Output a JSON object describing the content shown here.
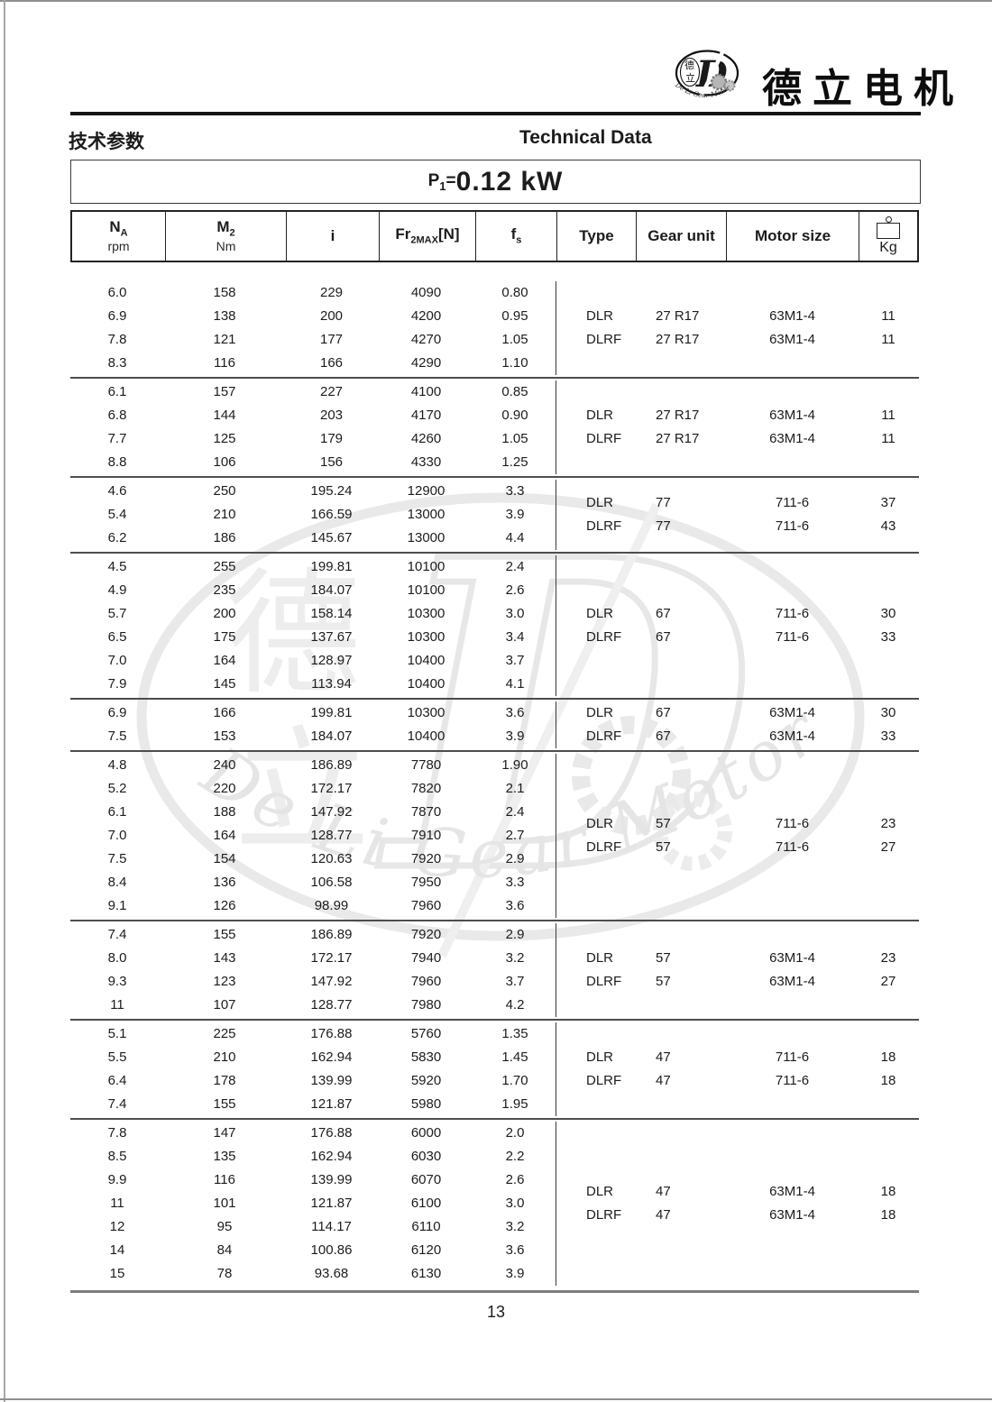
{
  "brand": {
    "logo_cn_top": "德",
    "logo_cn_bottom": "立",
    "logo_letter": "D",
    "logo_arc_text": "De Li Gear Motor",
    "company_cn": "德立电机"
  },
  "header": {
    "left_cn": "技术参数",
    "right_en": "Technical Data"
  },
  "power_title": {
    "p": "P",
    "p_sub": "1",
    "equals": "=",
    "value": "0.12 kW"
  },
  "table": {
    "columns": {
      "na": {
        "main": "N",
        "sub": "A",
        "unit": "rpm"
      },
      "m2": {
        "main": "M",
        "sub": "2",
        "unit": "Nm"
      },
      "i": {
        "label": "i"
      },
      "fr": {
        "main": "Fr",
        "sub": "2MAX",
        "bracket": "[N]"
      },
      "fs": {
        "main": "f",
        "sub": "s"
      },
      "type": {
        "label": "Type"
      },
      "gear": {
        "label": "Gear unit"
      },
      "motor": {
        "label": "Motor size"
      },
      "kg": {
        "label": "Kg"
      }
    },
    "groups": [
      {
        "rows": [
          [
            "6.0",
            "158",
            "229",
            "4090",
            "0.80"
          ],
          [
            "6.9",
            "138",
            "200",
            "4200",
            "0.95"
          ],
          [
            "7.8",
            "121",
            "177",
            "4270",
            "1.05"
          ],
          [
            "8.3",
            "116",
            "166",
            "4290",
            "1.10"
          ]
        ],
        "types": [
          "DLR",
          "DLRF"
        ],
        "gear_units": [
          "27 R17",
          "27 R17"
        ],
        "motor_sizes": [
          "63M1-4",
          "63M1-4"
        ],
        "weights": [
          "11",
          "11"
        ]
      },
      {
        "rows": [
          [
            "6.1",
            "157",
            "227",
            "4100",
            "0.85"
          ],
          [
            "6.8",
            "144",
            "203",
            "4170",
            "0.90"
          ],
          [
            "7.7",
            "125",
            "179",
            "4260",
            "1.05"
          ],
          [
            "8.8",
            "106",
            "156",
            "4330",
            "1.25"
          ]
        ],
        "types": [
          "DLR",
          "DLRF"
        ],
        "gear_units": [
          "27 R17",
          "27 R17"
        ],
        "motor_sizes": [
          "63M1-4",
          "63M1-4"
        ],
        "weights": [
          "11",
          "11"
        ]
      },
      {
        "rows": [
          [
            "4.6",
            "250",
            "195.24",
            "12900",
            "3.3"
          ],
          [
            "5.4",
            "210",
            "166.59",
            "13000",
            "3.9"
          ],
          [
            "6.2",
            "186",
            "145.67",
            "13000",
            "4.4"
          ]
        ],
        "types": [
          "DLR",
          "DLRF"
        ],
        "gear_units": [
          "77",
          "77"
        ],
        "motor_sizes": [
          "711-6",
          "711-6"
        ],
        "weights": [
          "37",
          "43"
        ]
      },
      {
        "rows": [
          [
            "4.5",
            "255",
            "199.81",
            "10100",
            "2.4"
          ],
          [
            "4.9",
            "235",
            "184.07",
            "10100",
            "2.6"
          ],
          [
            "5.7",
            "200",
            "158.14",
            "10300",
            "3.0"
          ],
          [
            "6.5",
            "175",
            "137.67",
            "10300",
            "3.4"
          ],
          [
            "7.0",
            "164",
            "128.97",
            "10400",
            "3.7"
          ],
          [
            "7.9",
            "145",
            "113.94",
            "10400",
            "4.1"
          ]
        ],
        "types": [
          "DLR",
          "DLRF"
        ],
        "gear_units": [
          "67",
          "67"
        ],
        "motor_sizes": [
          "711-6",
          "711-6"
        ],
        "weights": [
          "30",
          "33"
        ]
      },
      {
        "rows": [
          [
            "6.9",
            "166",
            "199.81",
            "10300",
            "3.6"
          ],
          [
            "7.5",
            "153",
            "184.07",
            "10400",
            "3.9"
          ]
        ],
        "types": [
          "DLR",
          "DLRF"
        ],
        "gear_units": [
          "67",
          "67"
        ],
        "motor_sizes": [
          "63M1-4",
          "63M1-4"
        ],
        "weights": [
          "30",
          "33"
        ]
      },
      {
        "rows": [
          [
            "4.8",
            "240",
            "186.89",
            "7780",
            "1.90"
          ],
          [
            "5.2",
            "220",
            "172.17",
            "7820",
            "2.1"
          ],
          [
            "6.1",
            "188",
            "147.92",
            "7870",
            "2.4"
          ],
          [
            "7.0",
            "164",
            "128.77",
            "7910",
            "2.7"
          ],
          [
            "7.5",
            "154",
            "120.63",
            "7920",
            "2.9"
          ],
          [
            "8.4",
            "136",
            "106.58",
            "7950",
            "3.3"
          ],
          [
            "9.1",
            "126",
            "98.99",
            "7960",
            "3.6"
          ]
        ],
        "types": [
          "DLR",
          "DLRF"
        ],
        "gear_units": [
          "57",
          "57"
        ],
        "motor_sizes": [
          "711-6",
          "711-6"
        ],
        "weights": [
          "23",
          "27"
        ]
      },
      {
        "rows": [
          [
            "7.4",
            "155",
            "186.89",
            "7920",
            "2.9"
          ],
          [
            "8.0",
            "143",
            "172.17",
            "7940",
            "3.2"
          ],
          [
            "9.3",
            "123",
            "147.92",
            "7960",
            "3.7"
          ],
          [
            "11",
            "107",
            "128.77",
            "7980",
            "4.2"
          ]
        ],
        "types": [
          "DLR",
          "DLRF"
        ],
        "gear_units": [
          "57",
          "57"
        ],
        "motor_sizes": [
          "63M1-4",
          "63M1-4"
        ],
        "weights": [
          "23",
          "27"
        ]
      },
      {
        "rows": [
          [
            "5.1",
            "225",
            "176.88",
            "5760",
            "1.35"
          ],
          [
            "5.5",
            "210",
            "162.94",
            "5830",
            "1.45"
          ],
          [
            "6.4",
            "178",
            "139.99",
            "5920",
            "1.70"
          ],
          [
            "7.4",
            "155",
            "121.87",
            "5980",
            "1.95"
          ]
        ],
        "types": [
          "DLR",
          "DLRF"
        ],
        "gear_units": [
          "47",
          "47"
        ],
        "motor_sizes": [
          "711-6",
          "711-6"
        ],
        "weights": [
          "18",
          "18"
        ]
      },
      {
        "rows": [
          [
            "7.8",
            "147",
            "176.88",
            "6000",
            "2.0"
          ],
          [
            "8.5",
            "135",
            "162.94",
            "6030",
            "2.2"
          ],
          [
            "9.9",
            "116",
            "139.99",
            "6070",
            "2.6"
          ],
          [
            "11",
            "101",
            "121.87",
            "6100",
            "3.0"
          ],
          [
            "12",
            "95",
            "114.17",
            "6110",
            "3.2"
          ],
          [
            "14",
            "84",
            "100.86",
            "6120",
            "3.6"
          ],
          [
            "15",
            "78",
            "93.68",
            "6130",
            "3.9"
          ]
        ],
        "types": [
          "DLR",
          "DLRF"
        ],
        "gear_units": [
          "47",
          "47"
        ],
        "motor_sizes": [
          "63M1-4",
          "63M1-4"
        ],
        "weights": [
          "18",
          "18"
        ]
      }
    ]
  },
  "footer": {
    "page_number": "13"
  },
  "colors": {
    "ink": "#1c1c1c",
    "rule_dark": "#141414",
    "rule_gray": "#7d7d7d",
    "watermark": "#e7e7e7"
  }
}
